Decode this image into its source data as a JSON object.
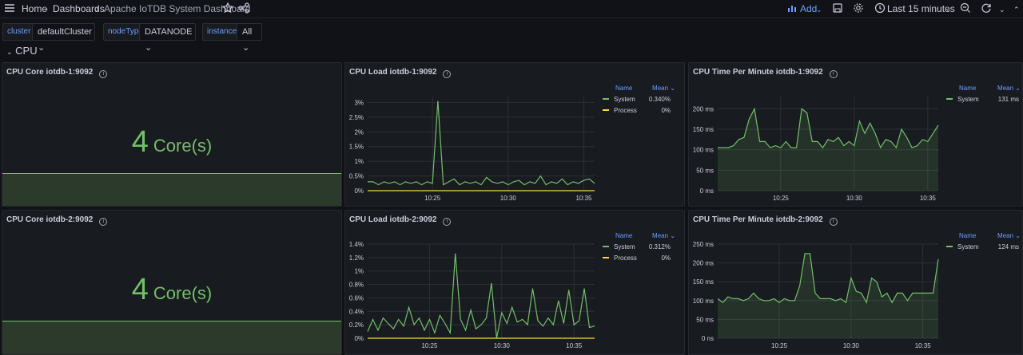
{
  "topbar": {
    "breadcrumb": [
      "Home",
      "Dashboards",
      "Apache IoTDB System Dashboard"
    ],
    "add_label": "Add",
    "time_range": "Last 15 minutes"
  },
  "variables": [
    {
      "name": "cluster",
      "value": "defaultCluster"
    },
    {
      "name": "nodeType",
      "value": "DATANODE"
    },
    {
      "name": "instance",
      "value": "All"
    }
  ],
  "row": {
    "title": "CPU"
  },
  "panels": {
    "core1": {
      "title": "CPU Core iotdb-1:9092",
      "value": "4",
      "unit": "Core(s)"
    },
    "core2": {
      "title": "CPU Core iotdb-2:9092",
      "value": "4",
      "unit": "Core(s)"
    },
    "load1": {
      "title": "CPU Load iotdb-1:9092",
      "legend_name": "Name",
      "legend_mean": "Mean",
      "series": [
        {
          "name": "System",
          "mean": "0.340%",
          "color": "#73bf69"
        },
        {
          "name": "Process",
          "mean": "0%",
          "color": "#fade2a"
        }
      ]
    },
    "load2": {
      "title": "CPU Load iotdb-2:9092",
      "legend_name": "Name",
      "legend_mean": "Mean",
      "series": [
        {
          "name": "System",
          "mean": "0.312%",
          "color": "#73bf69"
        },
        {
          "name": "Process",
          "mean": "0%",
          "color": "#fade2a"
        }
      ]
    },
    "time1": {
      "title": "CPU Time Per Minute iotdb-1:9092",
      "legend_name": "Name",
      "legend_mean": "Mean",
      "series": [
        {
          "name": "System",
          "mean": "131 ms",
          "color": "#73bf69"
        }
      ]
    },
    "time2": {
      "title": "CPU Time Per Minute iotdb-2:9092",
      "legend_name": "Name",
      "legend_mean": "Mean",
      "series": [
        {
          "name": "System",
          "mean": "124 ms",
          "color": "#73bf69"
        }
      ]
    }
  },
  "chart_data": [
    {
      "id": "load1",
      "type": "line",
      "title": "CPU Load iotdb-1:9092",
      "xticks": [
        "10:25",
        "10:30",
        "10:35"
      ],
      "xtick_index": [
        12,
        26,
        40
      ],
      "yticks": [
        "0%",
        "0.5%",
        "1%",
        "1.5%",
        "2%",
        "2.5%",
        "3%"
      ],
      "ylim": [
        0,
        3.2
      ],
      "series": [
        {
          "name": "System",
          "color": "#73bf69",
          "values": [
            0.3,
            0.3,
            0.2,
            0.3,
            0.25,
            0.3,
            0.2,
            0.3,
            0.25,
            0.3,
            0.2,
            0.3,
            0.25,
            3.05,
            0.2,
            0.3,
            0.4,
            0.2,
            0.3,
            0.25,
            0.3,
            0.2,
            0.45,
            0.3,
            0.25,
            0.3,
            0.2,
            0.3,
            0.35,
            0.2,
            0.3,
            0.25,
            0.5,
            0.2,
            0.3,
            0.25,
            0.4,
            0.2,
            0.3,
            0.25,
            0.35,
            0.4,
            0.25
          ]
        },
        {
          "name": "Process",
          "color": "#fade2a",
          "values": [
            0,
            0,
            0,
            0,
            0,
            0,
            0,
            0,
            0,
            0,
            0,
            0,
            0,
            0,
            0,
            0,
            0,
            0,
            0,
            0,
            0,
            0,
            0,
            0,
            0,
            0,
            0,
            0,
            0,
            0,
            0,
            0,
            0,
            0,
            0,
            0,
            0,
            0,
            0,
            0,
            0,
            0,
            0
          ]
        }
      ]
    },
    {
      "id": "load2",
      "type": "line",
      "title": "CPU Load iotdb-2:9092",
      "xticks": [
        "10:25",
        "10:30",
        "10:35"
      ],
      "xtick_index": [
        12,
        26,
        40
      ],
      "yticks": [
        "0%",
        "0.2%",
        "0.4%",
        "0.6%",
        "0.8%",
        "1%",
        "1.2%",
        "1.4%"
      ],
      "ylim": [
        0,
        1.4
      ],
      "series": [
        {
          "name": "System",
          "color": "#73bf69",
          "values": [
            0.1,
            0.28,
            0.12,
            0.3,
            0.22,
            0.14,
            0.28,
            0.18,
            0.46,
            0.2,
            0.3,
            0.12,
            0.28,
            0.08,
            0.34,
            0.22,
            0.08,
            1.26,
            0.28,
            0.12,
            0.42,
            0.14,
            0.2,
            0.3,
            0.82,
            0.0,
            0.38,
            0.22,
            0.46,
            0.24,
            0.28,
            0.2,
            0.74,
            0.26,
            0.18,
            0.3,
            0.2,
            0.56,
            0.22,
            0.72,
            0.2,
            0.26,
            0.74,
            0.16,
            0.18
          ]
        },
        {
          "name": "Process",
          "color": "#fade2a",
          "values": [
            0,
            0,
            0,
            0,
            0,
            0,
            0,
            0,
            0,
            0,
            0,
            0,
            0,
            0,
            0,
            0,
            0,
            0,
            0,
            0,
            0,
            0,
            0,
            0,
            0,
            0,
            0,
            0,
            0,
            0,
            0,
            0,
            0,
            0,
            0,
            0,
            0,
            0,
            0,
            0,
            0,
            0,
            0,
            0,
            0
          ]
        }
      ]
    },
    {
      "id": "time1",
      "type": "area",
      "title": "CPU Time Per Minute iotdb-1:9092",
      "xticks": [
        "10:25",
        "10:30",
        "10:35"
      ],
      "xtick_index": [
        12,
        26,
        40
      ],
      "yticks": [
        "0 ms",
        "50 ms",
        "100 ms",
        "150 ms",
        "200 ms"
      ],
      "ylim": [
        0,
        230
      ],
      "series": [
        {
          "name": "System",
          "color": "#73bf69",
          "values": [
            105,
            105,
            105,
            110,
            125,
            130,
            175,
            200,
            120,
            120,
            105,
            110,
            105,
            120,
            105,
            105,
            200,
            190,
            120,
            120,
            105,
            125,
            120,
            130,
            110,
            120,
            110,
            170,
            140,
            165,
            140,
            105,
            125,
            120,
            105,
            150,
            130,
            105,
            110,
            125,
            120,
            140,
            160
          ]
        }
      ]
    },
    {
      "id": "time2",
      "type": "area",
      "title": "CPU Time Per Minute iotdb-2:9092",
      "xticks": [
        "10:25",
        "10:30",
        "10:35"
      ],
      "xtick_index": [
        12,
        26,
        40
      ],
      "yticks": [
        "0 ns",
        "50 ms",
        "100 ms",
        "150 ms",
        "200 ms",
        "250 ms"
      ],
      "ylim": [
        0,
        250
      ],
      "series": [
        {
          "name": "System",
          "color": "#73bf69",
          "values": [
            105,
            95,
            110,
            105,
            105,
            100,
            105,
            120,
            105,
            100,
            100,
            105,
            95,
            105,
            100,
            100,
            140,
            225,
            225,
            120,
            105,
            105,
            105,
            100,
            105,
            95,
            160,
            125,
            120,
            95,
            160,
            150,
            110,
            120,
            95,
            120,
            120,
            100,
            120,
            120,
            120,
            120,
            120,
            210
          ]
        }
      ]
    }
  ]
}
